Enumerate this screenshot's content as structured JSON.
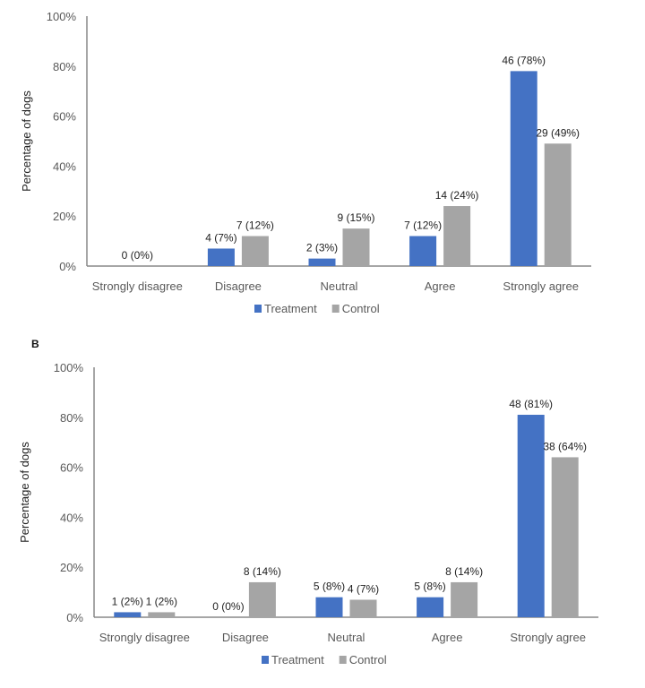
{
  "chart_data": [
    {
      "type": "bar",
      "panel_label": "",
      "ylabel": "Percentage of dogs",
      "xlabel": "",
      "ylim": [
        0,
        100
      ],
      "yticks": [
        "0%",
        "20%",
        "40%",
        "60%",
        "80%",
        "100%"
      ],
      "grid": false,
      "legend_position": "bottom",
      "categories": [
        "Strongly disagree",
        "Disagree",
        "Neutral",
        "Agree",
        "Strongly agree"
      ],
      "series": [
        {
          "name": "Treatment",
          "color": "#4472C4",
          "counts": [
            0,
            4,
            2,
            7,
            46
          ],
          "values": [
            0,
            7,
            3,
            12,
            78
          ]
        },
        {
          "name": "Control",
          "color": "#A5A5A5",
          "counts": [
            null,
            7,
            9,
            14,
            29
          ],
          "values": [
            null,
            12,
            15,
            24,
            49
          ]
        }
      ]
    },
    {
      "type": "bar",
      "panel_label": "B",
      "ylabel": "Percentage of dogs",
      "xlabel": "",
      "ylim": [
        0,
        100
      ],
      "yticks": [
        "0%",
        "20%",
        "40%",
        "60%",
        "80%",
        "100%"
      ],
      "grid": false,
      "legend_position": "bottom",
      "categories": [
        "Strongly disagree",
        "Disagree",
        "Neutral",
        "Agree",
        "Strongly agree"
      ],
      "series": [
        {
          "name": "Treatment",
          "color": "#4472C4",
          "counts": [
            1,
            0,
            5,
            5,
            48
          ],
          "values": [
            2,
            0,
            8,
            8,
            81
          ]
        },
        {
          "name": "Control",
          "color": "#A5A5A5",
          "counts": [
            1,
            8,
            4,
            8,
            38
          ],
          "values": [
            2,
            14,
            7,
            14,
            64
          ]
        }
      ]
    }
  ]
}
